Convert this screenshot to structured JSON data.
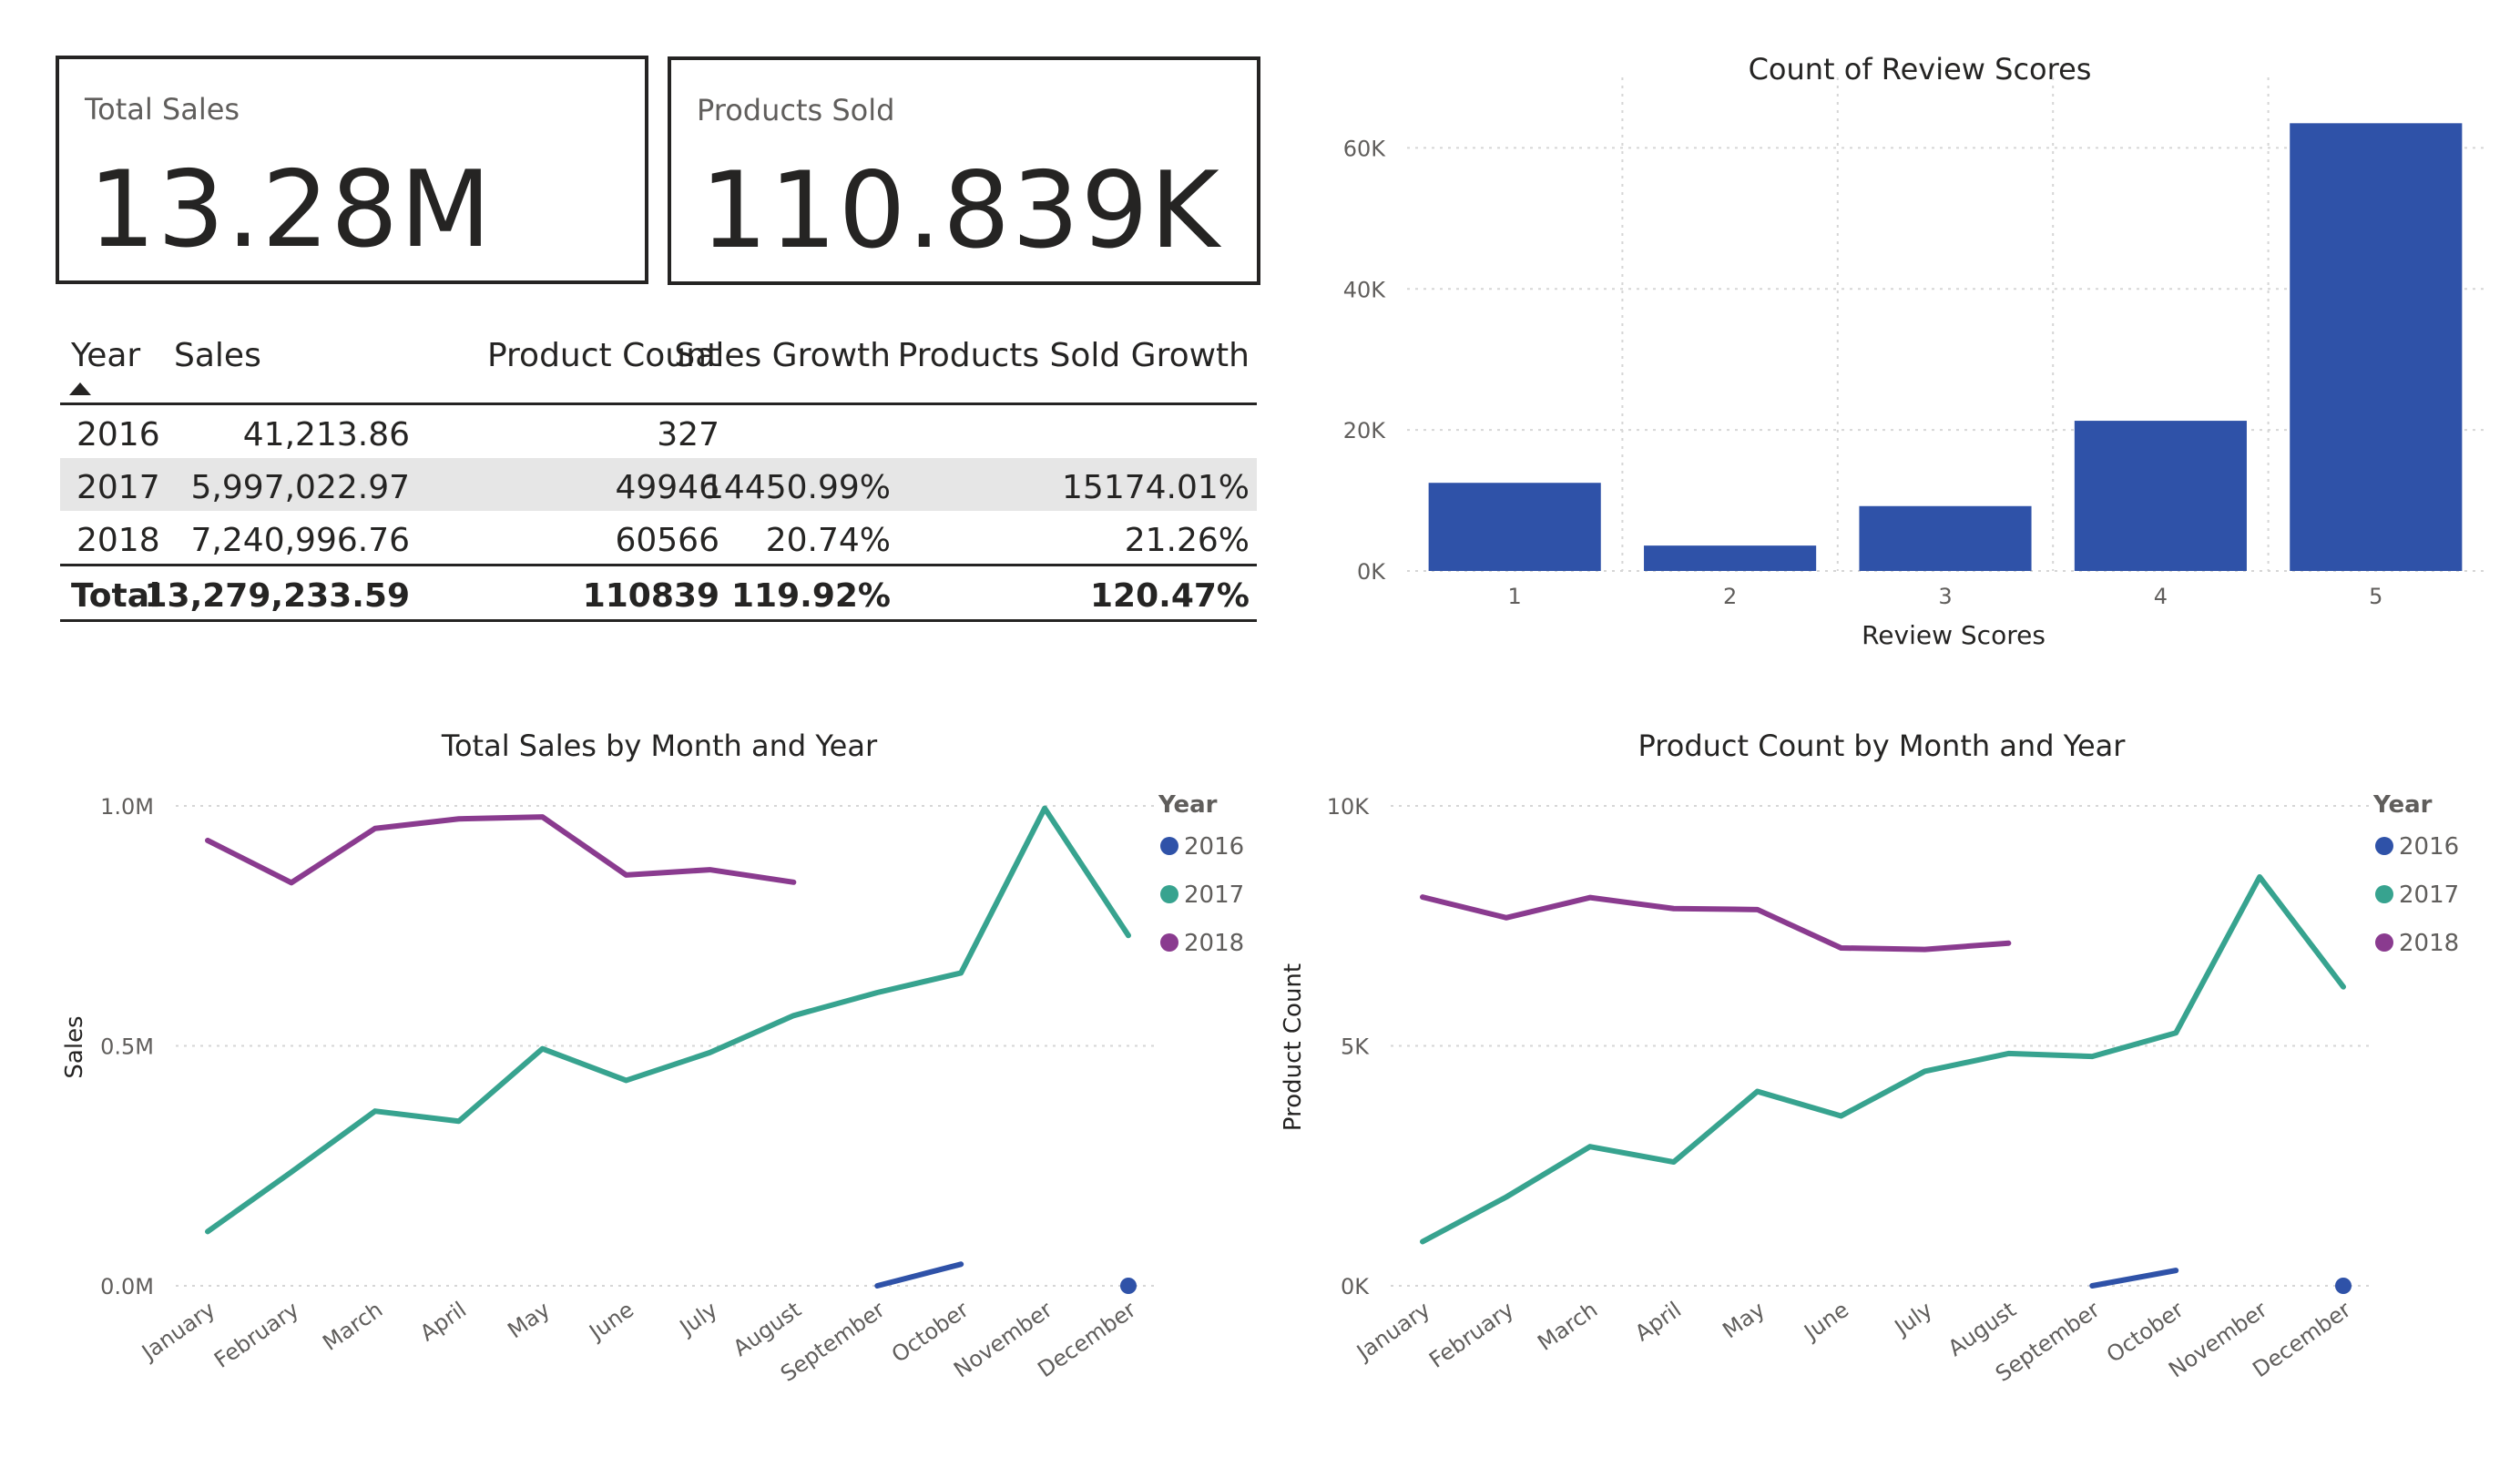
{
  "cards": [
    {
      "label": "Total Sales",
      "value": "13.28M"
    },
    {
      "label": "Products Sold",
      "value": "110.839K"
    }
  ],
  "table": {
    "headers": [
      "Year",
      "Sales",
      "Product Count",
      "Sales Growth",
      "Products Sold Growth"
    ],
    "rows": [
      [
        "2016",
        "41,213.86",
        "327",
        "",
        ""
      ],
      [
        "2017",
        "5,997,022.97",
        "49946",
        "14450.99%",
        "15174.01%"
      ],
      [
        "2018",
        "7,240,996.76",
        "60566",
        "20.74%",
        "21.26%"
      ]
    ],
    "total": [
      "Total",
      "13,279,233.59",
      "110839",
      "119.92%",
      "120.47%"
    ]
  },
  "colors": {
    "bar": "#2f52a8",
    "y2016": "#2f52a8",
    "y2017": "#37a38f",
    "y2018": "#8a3b8f",
    "grid": "#d6d6d6",
    "axis_text": "#605e5c"
  },
  "chart_data": [
    {
      "type": "bar",
      "title": "Count of Review Scores",
      "xlabel": "Review Scores",
      "ylabel": "",
      "categories": [
        "1",
        "2",
        "3",
        "4",
        "5"
      ],
      "values": [
        12500,
        3600,
        9200,
        21300,
        63500
      ],
      "ylim": [
        0,
        70000
      ],
      "yticks": [
        0,
        20000,
        40000,
        60000
      ],
      "ytick_labels": [
        "0K",
        "20K",
        "40K",
        "60K"
      ],
      "grid": true
    },
    {
      "type": "line",
      "title": "Total Sales by Month and Year",
      "xlabel": "",
      "ylabel": "Sales",
      "legend_title": "Year",
      "legend_position": "right",
      "categories": [
        "January",
        "February",
        "March",
        "April",
        "May",
        "June",
        "July",
        "August",
        "September",
        "October",
        "November",
        "December"
      ],
      "ylim": [
        0,
        1000000
      ],
      "yticks": [
        0,
        500000,
        1000000
      ],
      "ytick_labels": [
        "0.0M",
        "0.5M",
        "1.0M"
      ],
      "series": [
        {
          "name": "2016",
          "values": [
            null,
            null,
            null,
            null,
            null,
            null,
            null,
            null,
            0,
            45000,
            null,
            0
          ]
        },
        {
          "name": "2017",
          "values": [
            113000,
            237000,
            364000,
            343000,
            494000,
            428000,
            486000,
            563000,
            611000,
            652000,
            995000,
            730000
          ]
        },
        {
          "name": "2018",
          "values": [
            928000,
            840000,
            953000,
            973000,
            977000,
            856000,
            867000,
            841000,
            null,
            null,
            null,
            null
          ]
        }
      ]
    },
    {
      "type": "line",
      "title": "Product Count by Month and Year",
      "xlabel": "",
      "ylabel": "Product Count",
      "legend_title": "Year",
      "legend_position": "right",
      "categories": [
        "January",
        "February",
        "March",
        "April",
        "May",
        "June",
        "July",
        "August",
        "September",
        "October",
        "November",
        "December"
      ],
      "ylim": [
        0,
        10000
      ],
      "yticks": [
        0,
        5000,
        10000
      ],
      "ytick_labels": [
        "0K",
        "5K",
        "10K"
      ],
      "series": [
        {
          "name": "2016",
          "values": [
            null,
            null,
            null,
            null,
            null,
            null,
            null,
            null,
            0,
            320,
            null,
            0
          ]
        },
        {
          "name": "2017",
          "values": [
            920,
            1850,
            2900,
            2580,
            4050,
            3540,
            4470,
            4840,
            4780,
            5270,
            8520,
            6230
          ]
        },
        {
          "name": "2018",
          "values": [
            8100,
            7670,
            8090,
            7860,
            7840,
            7040,
            7010,
            7140,
            null,
            null,
            null,
            null
          ]
        }
      ]
    }
  ]
}
